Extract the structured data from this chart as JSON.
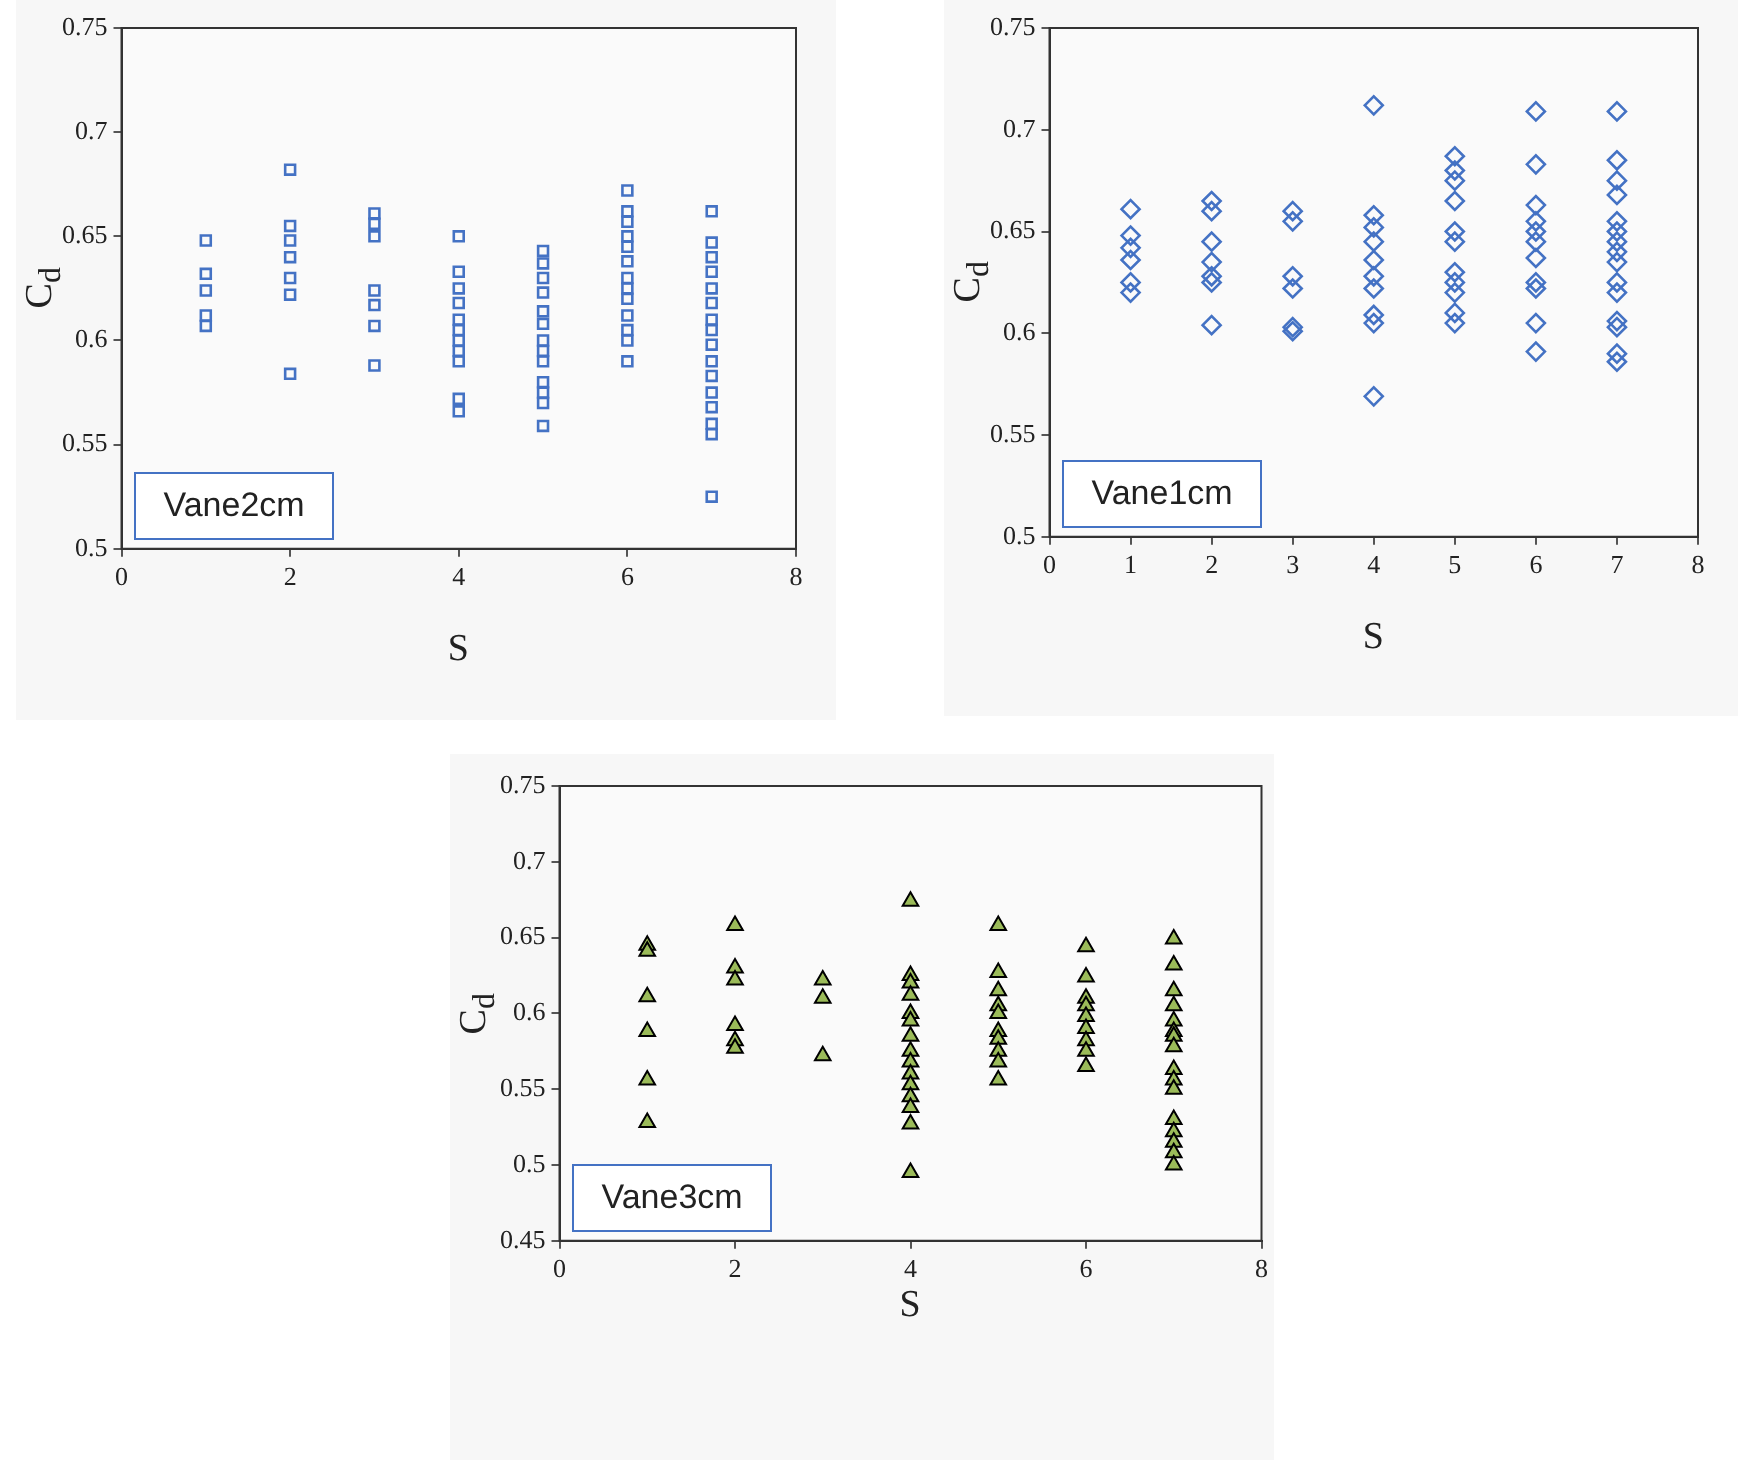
{
  "chart_data": [
    {
      "type": "scatter",
      "xlabel": "S",
      "ylabel": "C$_{d}$",
      "annotations": [
        "Vane2cm"
      ],
      "marker": "square",
      "color": "#4472c4",
      "xlim": [
        0,
        8
      ],
      "xticks": [
        0,
        2,
        4,
        6,
        8
      ],
      "ylim": [
        0.5,
        0.75
      ],
      "yticks": [
        0.5,
        0.55,
        0.6,
        0.65,
        0.7,
        0.75
      ],
      "x": [
        1,
        1,
        1,
        1,
        1,
        2,
        2,
        2,
        2,
        2,
        2,
        2,
        3,
        3,
        3,
        3,
        3,
        3,
        3,
        4,
        4,
        4,
        4,
        4,
        4,
        4,
        4,
        4,
        4,
        4,
        5,
        5,
        5,
        5,
        5,
        5,
        5,
        5,
        5,
        5,
        5,
        5,
        5,
        6,
        6,
        6,
        6,
        6,
        6,
        6,
        6,
        6,
        6,
        6,
        6,
        6,
        7,
        7,
        7,
        7,
        7,
        7,
        7,
        7,
        7,
        7,
        7,
        7,
        7,
        7,
        7,
        7
      ],
      "values": [
        0.648,
        0.632,
        0.624,
        0.612,
        0.607,
        0.682,
        0.655,
        0.648,
        0.64,
        0.63,
        0.622,
        0.584,
        0.661,
        0.656,
        0.65,
        0.624,
        0.617,
        0.607,
        0.588,
        0.65,
        0.633,
        0.625,
        0.618,
        0.61,
        0.605,
        0.6,
        0.595,
        0.59,
        0.572,
        0.566,
        0.643,
        0.637,
        0.63,
        0.623,
        0.614,
        0.608,
        0.6,
        0.595,
        0.59,
        0.58,
        0.575,
        0.57,
        0.559,
        0.672,
        0.662,
        0.657,
        0.65,
        0.645,
        0.638,
        0.63,
        0.625,
        0.62,
        0.612,
        0.605,
        0.6,
        0.59,
        0.662,
        0.647,
        0.64,
        0.633,
        0.625,
        0.618,
        0.61,
        0.605,
        0.598,
        0.59,
        0.583,
        0.575,
        0.568,
        0.56,
        0.555,
        0.525
      ]
    },
    {
      "type": "scatter",
      "xlabel": "S",
      "ylabel": "C$_{d}$",
      "annotations": [
        "Vane1cm"
      ],
      "marker": "diamond",
      "color": "#4472c4",
      "xlim": [
        0,
        8
      ],
      "xticks": [
        0,
        1,
        2,
        3,
        4,
        5,
        6,
        7,
        8
      ],
      "ylim": [
        0.5,
        0.75
      ],
      "yticks": [
        0.5,
        0.55,
        0.6,
        0.65,
        0.7,
        0.75
      ],
      "x": [
        1,
        1,
        1,
        1,
        1,
        1,
        2,
        2,
        2,
        2,
        2,
        2,
        2,
        3,
        3,
        3,
        3,
        3,
        3,
        4,
        4,
        4,
        4,
        4,
        4,
        4,
        4,
        4,
        4,
        5,
        5,
        5,
        5,
        5,
        5,
        5,
        5,
        5,
        5,
        5,
        6,
        6,
        6,
        6,
        6,
        6,
        6,
        6,
        6,
        6,
        6,
        7,
        7,
        7,
        7,
        7,
        7,
        7,
        7,
        7,
        7,
        7,
        7,
        7,
        7,
        7
      ],
      "values": [
        0.661,
        0.648,
        0.642,
        0.636,
        0.625,
        0.62,
        0.665,
        0.66,
        0.645,
        0.635,
        0.628,
        0.625,
        0.604,
        0.66,
        0.655,
        0.628,
        0.622,
        0.603,
        0.601,
        0.712,
        0.658,
        0.652,
        0.645,
        0.636,
        0.628,
        0.622,
        0.609,
        0.605,
        0.569,
        0.687,
        0.68,
        0.675,
        0.665,
        0.65,
        0.645,
        0.63,
        0.625,
        0.62,
        0.61,
        0.605,
        0.709,
        0.683,
        0.663,
        0.655,
        0.65,
        0.645,
        0.637,
        0.625,
        0.622,
        0.605,
        0.591,
        0.709,
        0.685,
        0.675,
        0.668,
        0.655,
        0.65,
        0.645,
        0.64,
        0.635,
        0.625,
        0.62,
        0.606,
        0.603,
        0.59,
        0.586
      ]
    },
    {
      "type": "scatter",
      "xlabel": "S",
      "ylabel": "C$_{d}$",
      "annotations": [
        "Vane3cm"
      ],
      "marker": "triangle",
      "color": "#9bbb59",
      "xlim": [
        0,
        8
      ],
      "xticks": [
        0,
        2,
        4,
        6,
        8
      ],
      "ylim": [
        0.45,
        0.75
      ],
      "yticks": [
        0.45,
        0.5,
        0.55,
        0.6,
        0.65,
        0.7,
        0.75
      ],
      "x": [
        1,
        1,
        1,
        1,
        1,
        1,
        2,
        2,
        2,
        2,
        2,
        2,
        3,
        3,
        3,
        4,
        4,
        4,
        4,
        4,
        4,
        4,
        4,
        4,
        4,
        4,
        4,
        4,
        4,
        4,
        5,
        5,
        5,
        5,
        5,
        5,
        5,
        5,
        5,
        5,
        6,
        6,
        6,
        6,
        6,
        6,
        6,
        6,
        6,
        7,
        7,
        7,
        7,
        7,
        7,
        7,
        7,
        7,
        7,
        7,
        7,
        7,
        7,
        7,
        7
      ],
      "values": [
        0.645,
        0.641,
        0.611,
        0.588,
        0.556,
        0.528,
        0.658,
        0.63,
        0.622,
        0.592,
        0.582,
        0.577,
        0.622,
        0.61,
        0.572,
        0.674,
        0.625,
        0.62,
        0.612,
        0.6,
        0.595,
        0.585,
        0.575,
        0.568,
        0.56,
        0.553,
        0.545,
        0.538,
        0.527,
        0.495,
        0.658,
        0.627,
        0.615,
        0.605,
        0.6,
        0.588,
        0.583,
        0.575,
        0.568,
        0.556,
        0.644,
        0.624,
        0.61,
        0.605,
        0.598,
        0.59,
        0.582,
        0.575,
        0.565,
        0.649,
        0.632,
        0.615,
        0.605,
        0.595,
        0.588,
        0.585,
        0.578,
        0.563,
        0.556,
        0.55,
        0.53,
        0.522,
        0.515,
        0.508,
        0.5
      ]
    }
  ]
}
